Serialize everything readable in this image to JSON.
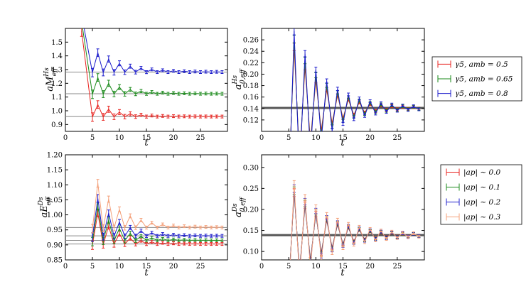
{
  "chart_data": [
    {
      "type": "line",
      "panel": "top-left",
      "xlabel": "t",
      "ylabel": "aM_eff^Hs",
      "xlim": [
        0,
        30
      ],
      "ylim": [
        0.85,
        1.6
      ],
      "x_ticks": [
        0,
        5,
        10,
        15,
        20,
        25
      ],
      "y_ticks": [
        0.9,
        1.0,
        1.1,
        1.2,
        1.3,
        1.4,
        1.5
      ],
      "x_tick_labels": [
        "0",
        "5",
        "10",
        "15",
        "20",
        "25"
      ],
      "y_tick_labels": [
        "0.9",
        "1.0",
        "1.1",
        "1.2",
        "1.3",
        "1.4",
        "1.5"
      ],
      "fit_lines": [
        0.958,
        1.124,
        1.282
      ],
      "series": [
        {
          "color": "#e8231f",
          "fit": 0.958,
          "start": 1.58,
          "amp": 0.09,
          "decay": 0.78
        },
        {
          "color": "#1a8a1a",
          "fit": 1.124,
          "start": 1.65,
          "amp": 0.12,
          "decay": 0.8
        },
        {
          "color": "#1c1ccc",
          "fit": 1.282,
          "start": 1.7,
          "amp": 0.14,
          "decay": 0.82
        }
      ],
      "legend": {
        "placement": "right",
        "entries": [
          {
            "color": "#e8231f",
            "label": "γ5, amb = 0.5"
          },
          {
            "color": "#1a8a1a",
            "label": "γ5, amb = 0.65"
          },
          {
            "color": "#1c1ccc",
            "label": "γ5, amb = 0.8"
          }
        ]
      }
    },
    {
      "type": "line",
      "panel": "top-right",
      "xlabel": "t",
      "ylabel": "a0,eff^Hs",
      "xlim": [
        0,
        30
      ],
      "ylim": [
        0.1,
        0.28
      ],
      "x_ticks": [
        0,
        5,
        10,
        15,
        20,
        25
      ],
      "y_ticks": [
        0.12,
        0.14,
        0.16,
        0.18,
        0.2,
        0.22,
        0.24,
        0.26
      ],
      "x_tick_labels": [
        "0",
        "5",
        "10",
        "15",
        "20",
        "25"
      ],
      "y_tick_labels": [
        "0.12",
        "0.14",
        "0.16",
        "0.18",
        "0.20",
        "0.22",
        "0.24",
        "0.26"
      ],
      "fit_lines": [
        0.141
      ],
      "series": [
        {
          "color": "#e8231f",
          "fit": 0.141,
          "amp": 0.13,
          "decay": 0.82
        },
        {
          "color": "#1a8a1a",
          "fit": 0.141,
          "amp": 0.145,
          "decay": 0.83
        },
        {
          "color": "#1c1ccc",
          "fit": 0.141,
          "amp": 0.16,
          "decay": 0.84
        }
      ]
    },
    {
      "type": "line",
      "panel": "bottom-left",
      "xlabel": "t",
      "ylabel": "aE_eff^Ds",
      "xlim": [
        0,
        30
      ],
      "ylim": [
        0.85,
        1.2
      ],
      "x_ticks": [
        0,
        5,
        10,
        15,
        20,
        25
      ],
      "y_ticks": [
        0.85,
        0.9,
        0.95,
        1.0,
        1.05,
        1.1,
        1.15,
        1.2
      ],
      "x_tick_labels": [
        "0",
        "5",
        "10",
        "15",
        "20",
        "25"
      ],
      "y_tick_labels": [
        "0.85",
        "0.90",
        "0.95",
        "1.00",
        "1.05",
        "1.10",
        "1.15",
        "1.20"
      ],
      "fit_lines": [
        0.903,
        0.915,
        0.93,
        0.958
      ],
      "series": [
        {
          "color": "#e8231f",
          "fit": 0.903,
          "amp": 0.11,
          "decay": 0.76
        },
        {
          "color": "#1a8a1a",
          "fit": 0.915,
          "amp": 0.12,
          "decay": 0.77
        },
        {
          "color": "#1c1ccc",
          "fit": 0.93,
          "amp": 0.13,
          "decay": 0.78
        },
        {
          "color": "#f4a07a",
          "fit": 0.958,
          "amp": 0.15,
          "decay": 0.8
        }
      ],
      "legend": {
        "placement": "right",
        "entries": [
          {
            "color": "#e8231f",
            "label": "|ap| ∼ 0.0"
          },
          {
            "color": "#1a8a1a",
            "label": "|ap| ∼ 0.1"
          },
          {
            "color": "#1c1ccc",
            "label": "|ap| ∼ 0.2"
          },
          {
            "color": "#f4a07a",
            "label": "|ap| ∼ 0.3"
          }
        ]
      }
    },
    {
      "type": "line",
      "panel": "bottom-right",
      "xlabel": "t",
      "ylabel": "a0,eff^Ds",
      "xlim": [
        0,
        30
      ],
      "ylim": [
        0.08,
        0.33
      ],
      "x_ticks": [
        0,
        5,
        10,
        15,
        20,
        25
      ],
      "y_ticks": [
        0.1,
        0.15,
        0.2,
        0.25,
        0.3
      ],
      "x_tick_labels": [
        "0",
        "5",
        "10",
        "15",
        "20",
        "25"
      ],
      "y_tick_labels": [
        "0.10",
        "0.15",
        "0.20",
        "0.25",
        "0.30"
      ],
      "fit_lines": [
        0.139
      ],
      "series": [
        {
          "color": "#e8231f",
          "fit": 0.139,
          "amp": 0.12,
          "decay": 0.84
        },
        {
          "color": "#1a8a1a",
          "fit": 0.139,
          "amp": 0.125,
          "decay": 0.845
        },
        {
          "color": "#1c1ccc",
          "fit": 0.139,
          "amp": 0.13,
          "decay": 0.85
        },
        {
          "color": "#f4a07a",
          "fit": 0.139,
          "amp": 0.14,
          "decay": 0.86
        }
      ]
    }
  ]
}
